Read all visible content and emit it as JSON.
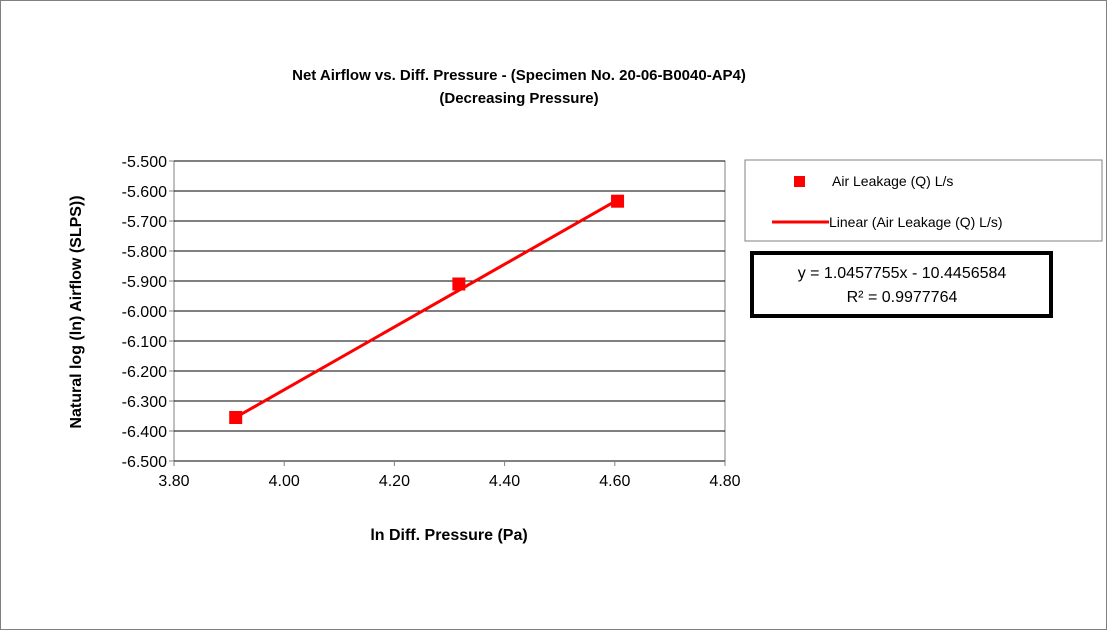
{
  "chart_data": {
    "type": "scatter",
    "title": "Net Airflow vs. Diff. Pressure - (Specimen No. 20-06-B0040-AP4)",
    "subtitle": "(Decreasing Pressure)",
    "xlabel": "ln Diff. Pressure (Pa)",
    "ylabel": "Natural log (ln) Airflow (SLPS))",
    "xlim": [
      3.8,
      4.8
    ],
    "ylim": [
      -6.5,
      -5.5
    ],
    "x_ticks": [
      "3.80",
      "4.00",
      "4.20",
      "4.40",
      "4.60",
      "4.80"
    ],
    "y_ticks": [
      "-5.500",
      "-5.600",
      "-5.700",
      "-5.800",
      "-5.900",
      "-6.000",
      "-6.100",
      "-6.200",
      "-6.300",
      "-6.400",
      "-6.500"
    ],
    "grid": "horizontal",
    "series": [
      {
        "name": "Air Leakage (Q) L/s",
        "color": "#ff0000",
        "marker": "square",
        "x": [
          3.912,
          4.317,
          4.605
        ],
        "y": [
          -6.355,
          -5.91,
          -5.634
        ]
      }
    ],
    "trendline": {
      "name": "Linear (Air Leakage (Q) L/s)",
      "color": "#ff0000",
      "slope": 1.0457755,
      "intercept": -10.4456584,
      "x_range": [
        3.912,
        4.605
      ]
    },
    "equation_label": {
      "line1": "y = 1.0457755x - 10.4456584",
      "line2": "R² = 0.9977764"
    },
    "legend_position": "right"
  }
}
